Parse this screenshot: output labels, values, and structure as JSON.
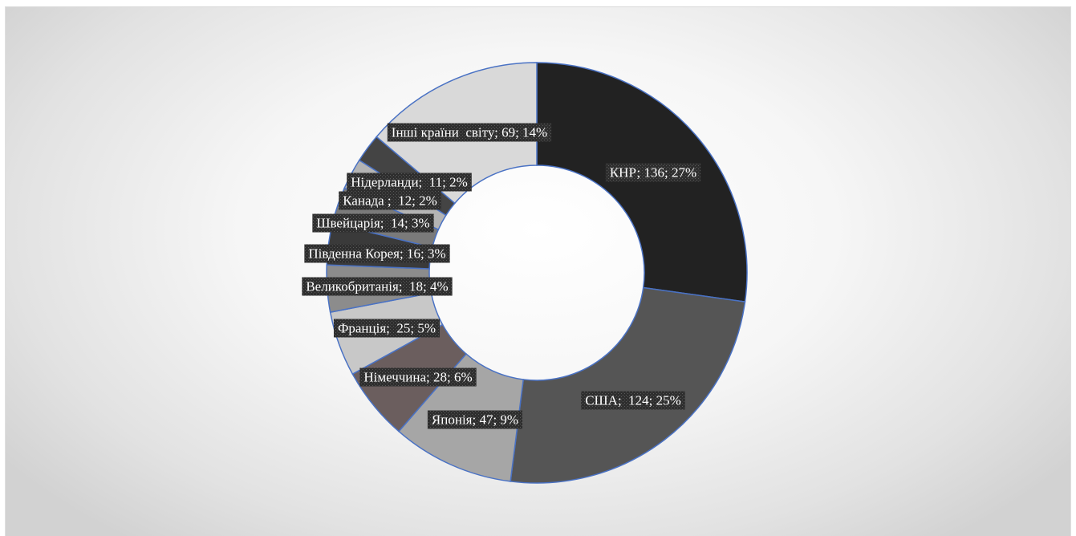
{
  "chart_data": {
    "type": "pie",
    "donut": true,
    "legend": "none",
    "slices": [
      {
        "label": "КНР",
        "value": 136,
        "percent": "27%",
        "text": "КНР; 136; 27%",
        "color": "#222222"
      },
      {
        "label": "США",
        "value": 124,
        "percent": "25%",
        "text": "США;  124; 25%",
        "color": "#555555"
      },
      {
        "label": "Японія",
        "value": 47,
        "percent": "9%",
        "text": "Японія; 47; 9%",
        "color": "#a6a6a6"
      },
      {
        "label": "Німеччина",
        "value": 28,
        "percent": "6%",
        "text": "Німеччина; 28; 6%",
        "color": "#6b5e5e"
      },
      {
        "label": "Франція",
        "value": 25,
        "percent": "5%",
        "text": "Франція;  25; 5%",
        "color": "#c8c8c8"
      },
      {
        "label": "Великобританія",
        "value": 18,
        "percent": "4%",
        "text": "Великобританія;  18; 4%",
        "color": "#8c8c8c"
      },
      {
        "label": "Південна Корея",
        "value": 16,
        "percent": "3%",
        "text": "Південна Корея; 16; 3%",
        "color": "#3a3a3a"
      },
      {
        "label": "Швейцарія",
        "value": 14,
        "percent": "3%",
        "text": "Швейцарія;  14; 3%",
        "color": "#7a7a7a"
      },
      {
        "label": "Канада",
        "value": 12,
        "percent": "2%",
        "text": "Канада ;  12; 2%",
        "color": "#b4b4b4"
      },
      {
        "label": "Нідерланди",
        "value": 11,
        "percent": "2%",
        "text": "Нідерланди;  11; 2%",
        "color": "#444444"
      },
      {
        "label": "Інші країни світу",
        "value": 69,
        "percent": "14%",
        "text": "Інші країни  світу; 69; 14%",
        "color": "#d9d9d9"
      }
    ]
  }
}
